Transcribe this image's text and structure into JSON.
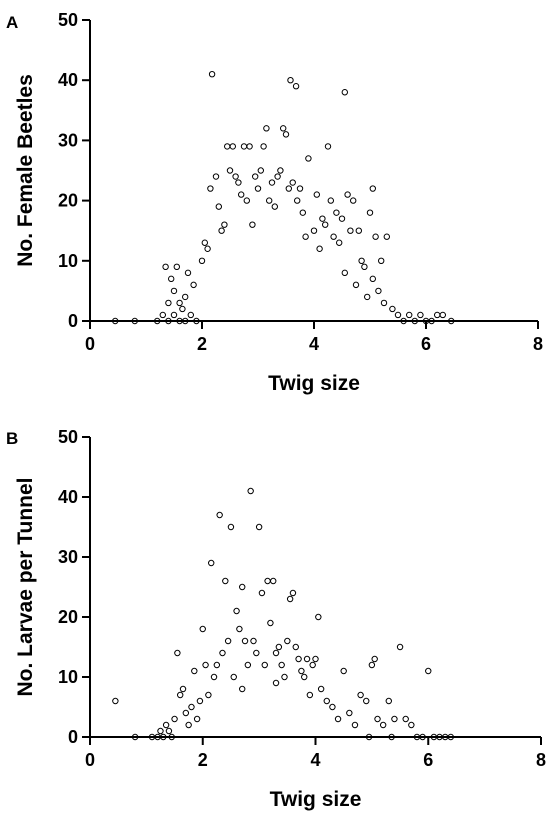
{
  "chart_data": [
    {
      "type": "scatter",
      "panel": "A",
      "xlabel": "Twig size",
      "ylabel": "No. Female Beetles",
      "xlim": [
        0,
        8
      ],
      "ylim": [
        0,
        50
      ],
      "x_ticks": [
        0,
        2,
        4,
        6,
        8
      ],
      "y_ticks": [
        0,
        10,
        20,
        30,
        40,
        50
      ],
      "grid": false,
      "marker": "open-circle",
      "points": [
        [
          0.45,
          0
        ],
        [
          0.8,
          0
        ],
        [
          1.2,
          0
        ],
        [
          1.3,
          1
        ],
        [
          1.4,
          0
        ],
        [
          1.5,
          1
        ],
        [
          1.6,
          0
        ],
        [
          1.7,
          0
        ],
        [
          1.8,
          1
        ],
        [
          1.9,
          0
        ],
        [
          1.35,
          9
        ],
        [
          1.45,
          7
        ],
        [
          1.55,
          9
        ],
        [
          1.5,
          5
        ],
        [
          1.6,
          3
        ],
        [
          1.7,
          4
        ],
        [
          1.75,
          8
        ],
        [
          1.85,
          6
        ],
        [
          1.65,
          2
        ],
        [
          1.4,
          3
        ],
        [
          2.0,
          10
        ],
        [
          2.05,
          13
        ],
        [
          2.1,
          12
        ],
        [
          2.15,
          22
        ],
        [
          2.18,
          41
        ],
        [
          2.25,
          24
        ],
        [
          2.3,
          19
        ],
        [
          2.35,
          15
        ],
        [
          2.4,
          16
        ],
        [
          2.45,
          29
        ],
        [
          2.5,
          25
        ],
        [
          2.55,
          29
        ],
        [
          2.6,
          24
        ],
        [
          2.65,
          23
        ],
        [
          2.7,
          21
        ],
        [
          2.75,
          29
        ],
        [
          2.8,
          20
        ],
        [
          2.85,
          29
        ],
        [
          2.9,
          16
        ],
        [
          2.95,
          24
        ],
        [
          3.0,
          22
        ],
        [
          3.05,
          25
        ],
        [
          3.1,
          29
        ],
        [
          3.15,
          32
        ],
        [
          3.2,
          20
        ],
        [
          3.25,
          23
        ],
        [
          3.3,
          19
        ],
        [
          3.35,
          24
        ],
        [
          3.4,
          25
        ],
        [
          3.45,
          32
        ],
        [
          3.5,
          31
        ],
        [
          3.55,
          22
        ],
        [
          3.58,
          40
        ],
        [
          3.62,
          23
        ],
        [
          3.68,
          39
        ],
        [
          3.7,
          20
        ],
        [
          3.75,
          22
        ],
        [
          3.8,
          18
        ],
        [
          3.85,
          14
        ],
        [
          3.9,
          27
        ],
        [
          4.0,
          15
        ],
        [
          4.05,
          21
        ],
        [
          4.1,
          12
        ],
        [
          4.15,
          17
        ],
        [
          4.2,
          16
        ],
        [
          4.25,
          29
        ],
        [
          4.3,
          20
        ],
        [
          4.35,
          14
        ],
        [
          4.4,
          18
        ],
        [
          4.45,
          13
        ],
        [
          4.5,
          17
        ],
        [
          4.55,
          38
        ],
        [
          4.6,
          21
        ],
        [
          4.65,
          15
        ],
        [
          4.7,
          20
        ],
        [
          4.8,
          15
        ],
        [
          4.85,
          10
        ],
        [
          4.9,
          9
        ],
        [
          5.0,
          18
        ],
        [
          5.05,
          22
        ],
        [
          5.1,
          14
        ],
        [
          5.2,
          10
        ],
        [
          5.3,
          14
        ],
        [
          5.4,
          2
        ],
        [
          5.5,
          1
        ],
        [
          5.6,
          0
        ],
        [
          5.7,
          1
        ],
        [
          5.8,
          0
        ],
        [
          5.9,
          1
        ],
        [
          6.0,
          0
        ],
        [
          6.1,
          0
        ],
        [
          6.2,
          1
        ],
        [
          6.3,
          1
        ],
        [
          6.45,
          0
        ],
        [
          5.25,
          3
        ],
        [
          5.15,
          5
        ],
        [
          5.05,
          7
        ],
        [
          4.95,
          4
        ],
        [
          4.75,
          6
        ],
        [
          4.55,
          8
        ]
      ]
    },
    {
      "type": "scatter",
      "panel": "B",
      "xlabel": "Twig size",
      "ylabel": "No. Larvae per Tunnel",
      "xlim": [
        0,
        8
      ],
      "ylim": [
        0,
        50
      ],
      "x_ticks": [
        0,
        2,
        4,
        6,
        8
      ],
      "y_ticks": [
        0,
        10,
        20,
        30,
        40,
        50
      ],
      "grid": false,
      "marker": "open-circle",
      "points": [
        [
          0.45,
          6
        ],
        [
          0.8,
          0
        ],
        [
          1.1,
          0
        ],
        [
          1.2,
          0
        ],
        [
          1.3,
          0
        ],
        [
          1.4,
          1
        ],
        [
          1.5,
          3
        ],
        [
          1.55,
          14
        ],
        [
          1.6,
          7
        ],
        [
          1.65,
          8
        ],
        [
          1.7,
          4
        ],
        [
          1.75,
          2
        ],
        [
          1.8,
          5
        ],
        [
          1.85,
          11
        ],
        [
          1.9,
          3
        ],
        [
          1.95,
          6
        ],
        [
          2.0,
          18
        ],
        [
          2.05,
          12
        ],
        [
          2.1,
          7
        ],
        [
          2.15,
          29
        ],
        [
          2.2,
          10
        ],
        [
          2.25,
          12
        ],
        [
          2.3,
          37
        ],
        [
          2.35,
          14
        ],
        [
          2.4,
          26
        ],
        [
          2.45,
          16
        ],
        [
          2.5,
          35
        ],
        [
          2.55,
          10
        ],
        [
          2.6,
          21
        ],
        [
          2.65,
          18
        ],
        [
          2.7,
          25
        ],
        [
          2.75,
          16
        ],
        [
          2.8,
          12
        ],
        [
          2.85,
          41
        ],
        [
          2.9,
          16
        ],
        [
          2.95,
          14
        ],
        [
          3.0,
          35
        ],
        [
          3.05,
          24
        ],
        [
          3.1,
          12
        ],
        [
          3.15,
          26
        ],
        [
          3.2,
          19
        ],
        [
          3.25,
          26
        ],
        [
          3.3,
          14
        ],
        [
          3.35,
          15
        ],
        [
          3.4,
          12
        ],
        [
          3.45,
          10
        ],
        [
          3.5,
          16
        ],
        [
          3.55,
          23
        ],
        [
          3.6,
          24
        ],
        [
          3.65,
          15
        ],
        [
          3.7,
          13
        ],
        [
          3.75,
          11
        ],
        [
          3.8,
          10
        ],
        [
          3.85,
          13
        ],
        [
          3.9,
          7
        ],
        [
          3.95,
          12
        ],
        [
          4.0,
          13
        ],
        [
          4.05,
          20
        ],
        [
          4.1,
          8
        ],
        [
          4.2,
          6
        ],
        [
          4.3,
          5
        ],
        [
          4.4,
          3
        ],
        [
          4.5,
          11
        ],
        [
          4.6,
          4
        ],
        [
          4.7,
          2
        ],
        [
          4.8,
          7
        ],
        [
          4.9,
          6
        ],
        [
          5.0,
          12
        ],
        [
          5.05,
          13
        ],
        [
          5.1,
          3
        ],
        [
          5.2,
          2
        ],
        [
          5.3,
          6
        ],
        [
          5.4,
          3
        ],
        [
          5.5,
          15
        ],
        [
          5.6,
          3
        ],
        [
          5.7,
          2
        ],
        [
          5.8,
          0
        ],
        [
          5.9,
          0
        ],
        [
          6.0,
          11
        ],
        [
          6.1,
          0
        ],
        [
          6.2,
          0
        ],
        [
          6.3,
          0
        ],
        [
          6.4,
          0
        ],
        [
          4.95,
          0
        ],
        [
          5.35,
          0
        ],
        [
          1.25,
          1
        ],
        [
          1.35,
          2
        ],
        [
          1.45,
          0
        ],
        [
          2.7,
          8
        ],
        [
          3.3,
          9
        ]
      ]
    }
  ],
  "panels": [
    {
      "letter": "A"
    },
    {
      "letter": "B"
    }
  ],
  "point_style": {
    "stroke": "#000000",
    "fill": "none"
  }
}
